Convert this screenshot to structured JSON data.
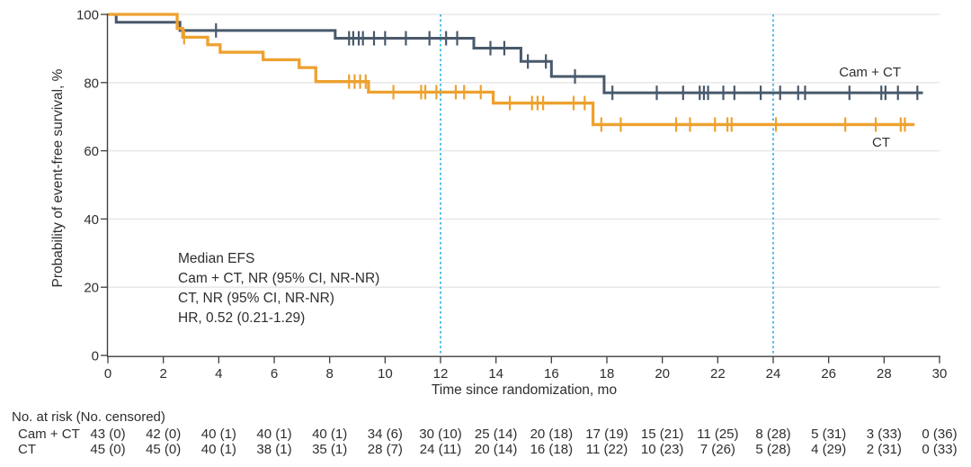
{
  "chart_data": {
    "type": "line",
    "subtype": "kaplan-meier-step",
    "title": "",
    "xlabel": "Time since randomization, mo",
    "ylabel": "Probability of event-free survival, %",
    "xlim": [
      0,
      30
    ],
    "ylim": [
      0,
      100
    ],
    "xticks": [
      0,
      2,
      4,
      6,
      8,
      10,
      12,
      14,
      16,
      18,
      20,
      22,
      24,
      26,
      28,
      30
    ],
    "yticks": [
      0,
      20,
      40,
      60,
      80,
      100
    ],
    "grid": "horizontal-light",
    "reference_lines_x": [
      12,
      24
    ],
    "annotation": {
      "lines": [
        "Median EFS",
        "Cam + CT, NR (95% CI, NR-NR)",
        "CT, NR (95% CI, NR-NR)",
        "HR, 0.52 (0.21-1.29)"
      ]
    },
    "series": [
      {
        "name": "Cam + CT",
        "color": "#48596b",
        "label_position": "above-curve-end",
        "steps": [
          [
            0,
            100
          ],
          [
            0.3,
            97.7
          ],
          [
            2.6,
            95.3
          ],
          [
            8.2,
            93.0
          ],
          [
            13.2,
            90.1
          ],
          [
            14.9,
            86.2
          ],
          [
            16.0,
            81.8
          ],
          [
            17.9,
            77.0
          ],
          [
            29.4,
            77.0
          ]
        ],
        "censor_marks": [
          [
            3.9,
            95.3
          ],
          [
            8.7,
            93.0
          ],
          [
            8.85,
            93.0
          ],
          [
            9.05,
            93.0
          ],
          [
            9.2,
            93.0
          ],
          [
            9.6,
            93.0
          ],
          [
            10.0,
            93.0
          ],
          [
            10.75,
            93.0
          ],
          [
            11.6,
            93.0
          ],
          [
            12.2,
            93.0
          ],
          [
            12.6,
            93.0
          ],
          [
            13.8,
            90.1
          ],
          [
            14.3,
            90.1
          ],
          [
            15.15,
            86.2
          ],
          [
            15.8,
            86.2
          ],
          [
            16.85,
            81.8
          ],
          [
            18.2,
            77.0
          ],
          [
            19.8,
            77.0
          ],
          [
            20.75,
            77.0
          ],
          [
            21.35,
            77.0
          ],
          [
            21.5,
            77.0
          ],
          [
            21.65,
            77.0
          ],
          [
            22.2,
            77.0
          ],
          [
            22.6,
            77.0
          ],
          [
            23.55,
            77.0
          ],
          [
            24.25,
            77.0
          ],
          [
            24.9,
            77.0
          ],
          [
            25.15,
            77.0
          ],
          [
            26.75,
            77.0
          ],
          [
            27.9,
            77.0
          ],
          [
            28.05,
            77.0
          ],
          [
            28.5,
            77.0
          ],
          [
            29.2,
            77.0
          ]
        ]
      },
      {
        "name": "CT",
        "color": "#eda12f",
        "label_position": "below-curve-end",
        "steps": [
          [
            0,
            100
          ],
          [
            2.5,
            95.9
          ],
          [
            2.7,
            93.3
          ],
          [
            3.6,
            91.1
          ],
          [
            4.05,
            88.9
          ],
          [
            5.6,
            86.7
          ],
          [
            6.9,
            84.4
          ],
          [
            7.5,
            80.3
          ],
          [
            9.4,
            77.2
          ],
          [
            13.9,
            74.0
          ],
          [
            17.5,
            67.7
          ],
          [
            29.1,
            67.7
          ]
        ],
        "censor_marks": [
          [
            2.75,
            93.3
          ],
          [
            8.7,
            80.3
          ],
          [
            8.9,
            80.3
          ],
          [
            9.1,
            80.3
          ],
          [
            9.3,
            80.3
          ],
          [
            10.3,
            77.2
          ],
          [
            11.3,
            77.2
          ],
          [
            11.45,
            77.2
          ],
          [
            11.85,
            77.2
          ],
          [
            12.55,
            77.2
          ],
          [
            12.85,
            77.2
          ],
          [
            13.45,
            77.2
          ],
          [
            14.5,
            74.0
          ],
          [
            15.3,
            74.0
          ],
          [
            15.5,
            74.0
          ],
          [
            15.7,
            74.0
          ],
          [
            16.8,
            74.0
          ],
          [
            17.2,
            74.0
          ],
          [
            17.8,
            67.7
          ],
          [
            18.5,
            67.7
          ],
          [
            20.5,
            67.7
          ],
          [
            21.0,
            67.7
          ],
          [
            21.9,
            67.7
          ],
          [
            22.35,
            67.7
          ],
          [
            22.5,
            67.7
          ],
          [
            24.1,
            67.7
          ],
          [
            26.6,
            67.7
          ],
          [
            27.7,
            67.7
          ],
          [
            28.6,
            67.7
          ],
          [
            28.75,
            67.7
          ]
        ]
      }
    ]
  },
  "risk_table": {
    "heading": "No. at risk (No. censored)",
    "times": [
      0,
      2,
      4,
      6,
      8,
      10,
      12,
      14,
      16,
      18,
      20,
      22,
      24,
      26,
      28,
      30
    ],
    "rows": [
      {
        "label": "Cam + CT",
        "values": [
          "43 (0)",
          "42 (0)",
          "40 (1)",
          "40 (1)",
          "40 (1)",
          "34 (6)",
          "30 (10)",
          "25 (14)",
          "20 (18)",
          "17 (19)",
          "15 (21)",
          "11 (25)",
          "8 (28)",
          "5 (31)",
          "3 (33)",
          "0 (36)"
        ]
      },
      {
        "label": "CT",
        "values": [
          "45 (0)",
          "45 (0)",
          "40 (1)",
          "38 (1)",
          "35 (1)",
          "28 (7)",
          "24 (11)",
          "20 (14)",
          "16 (18)",
          "11 (22)",
          "10 (23)",
          "7 (26)",
          "5 (28)",
          "4 (29)",
          "2 (31)",
          "0 (33)"
        ]
      }
    ]
  },
  "colors": {
    "cam_ct_curve": "#48596b",
    "ct_curve": "#eda12f",
    "reference_line": "#4fbee7",
    "gridline": "#e9e9e9",
    "axis": "#3f3f3f",
    "text": "#2e2e2e"
  }
}
